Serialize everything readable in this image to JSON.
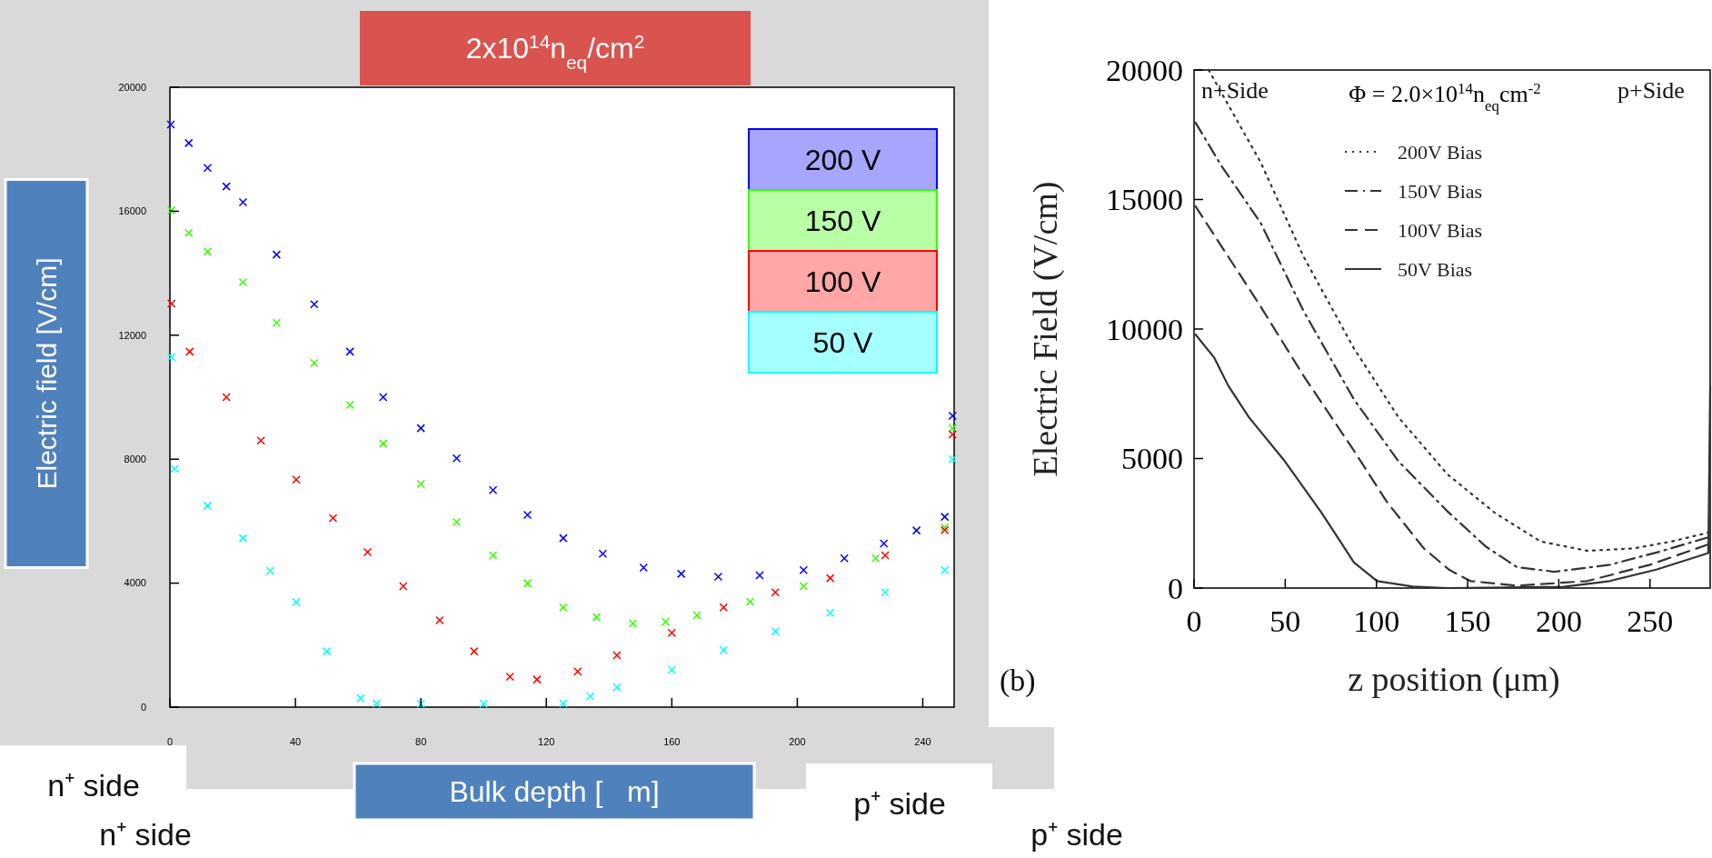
{
  "chart_data": [
    {
      "type": "scatter",
      "title": "2x10$^{14}$n$_{eq}$/cm$^{2}$",
      "xlabel": "Bulk depth [   m]",
      "ylabel": "Electric field [V/cm]",
      "xlim": [
        0,
        250
      ],
      "ylim": [
        0,
        20000
      ],
      "xticks": [
        0,
        40,
        80,
        120,
        160,
        200,
        240
      ],
      "yticks": [
        0,
        4000,
        8000,
        12000,
        16000,
        20000
      ],
      "marker": "cross",
      "legend": "top right",
      "annotations": [
        "n⁺ side",
        "n⁺ side",
        "p⁺ side",
        "p⁺ side"
      ],
      "series": [
        {
          "name": "200 V",
          "color": "#0000ff",
          "x": [
            0.3,
            6,
            12,
            18,
            23.3,
            34,
            46,
            57.4,
            68,
            80,
            91.4,
            103,
            114,
            125.4,
            138,
            151,
            163,
            174.8,
            188,
            202,
            215,
            227.6,
            238,
            247,
            249.5
          ],
          "values": [
            18800,
            18200,
            17400,
            16800,
            16290,
            14600,
            13000,
            11470,
            10000,
            9000,
            8030,
            7000,
            6200,
            5450,
            4950,
            4500,
            4300,
            4210,
            4250,
            4420,
            4800,
            5280,
            5700,
            6140,
            9400
          ]
        },
        {
          "name": "150 V",
          "color": "#33ff00",
          "x": [
            0.5,
            6,
            12,
            23.3,
            34,
            46,
            57.4,
            68,
            80,
            91.4,
            103,
            114,
            125.4,
            136,
            147.6,
            158,
            168,
            185,
            202,
            225,
            247,
            249.5
          ],
          "values": [
            16030,
            15300,
            14700,
            13710,
            12400,
            11100,
            9750,
            8500,
            7200,
            5970,
            4900,
            4000,
            3220,
            2900,
            2700,
            2750,
            2960,
            3400,
            3900,
            4800,
            5800,
            9000
          ]
        },
        {
          "name": "100 V",
          "color": "#ff0000",
          "x": [
            0.5,
            6.3,
            18,
            29,
            40.3,
            52,
            63,
            74.4,
            86,
            97,
            108.4,
            117,
            130,
            142.5,
            160,
            176.5,
            193,
            210.5,
            228,
            247,
            249.5
          ],
          "values": [
            13020,
            11470,
            10000,
            8600,
            7340,
            6100,
            5000,
            3900,
            2800,
            1800,
            980,
            890,
            1150,
            1670,
            2400,
            3220,
            3700,
            4160,
            4900,
            5710,
            8800
          ]
        },
        {
          "name": "50 V",
          "color": "#00ffff",
          "x": [
            0.5,
            1.5,
            12,
            23.3,
            32,
            40.3,
            50,
            60.8,
            65.9,
            80,
            100,
            125.4,
            134,
            142.5,
            160,
            176.5,
            193,
            210.5,
            228,
            247,
            249.5
          ],
          "values": [
            11300,
            7690,
            6500,
            5450,
            4400,
            3390,
            1800,
            290,
            120,
            110,
            110,
            120,
            350,
            640,
            1200,
            1840,
            2450,
            3040,
            3700,
            4420,
            8000
          ]
        }
      ]
    },
    {
      "type": "line",
      "title": "Φ = 2.0×10$^{14}$n$_{eq}$cm$^{-2}$",
      "xlabel": "z position (μm)",
      "ylabel": "Electric Field (V/cm)",
      "xlim": [
        0,
        283
      ],
      "ylim": [
        0,
        20000
      ],
      "xticks": [
        0,
        50,
        100,
        150,
        200,
        250
      ],
      "yticks": [
        0,
        5000,
        10000,
        15000,
        20000
      ],
      "legend": "top",
      "annotations": [
        "n+Side",
        "p+Side",
        "(b)"
      ],
      "series": [
        {
          "name": "200V Bias",
          "color": "#333333",
          "line_style": "dotted",
          "x": [
            8,
            20,
            36.5,
            60,
            87.7,
            112,
            138.8,
            165,
            190,
            215.5,
            241,
            262,
            283
          ],
          "values": [
            20000,
            18500,
            16440,
            12800,
            9250,
            6600,
            4400,
            2900,
            1800,
            1440,
            1530,
            1800,
            2160
          ]
        },
        {
          "name": "150V Bias",
          "color": "#333333",
          "line_style": "dashdot",
          "x": [
            0.8,
            15,
            36.5,
            60,
            87.7,
            112,
            138.8,
            160,
            177,
            197.6,
            228,
            255,
            283
          ],
          "values": [
            17970,
            16300,
            14100,
            10700,
            7280,
            4900,
            2970,
            1600,
            810,
            630,
            900,
            1400,
            1980
          ]
        },
        {
          "name": "100V Bias",
          "color": "#333333",
          "line_style": "dashed",
          "x": [
            0.8,
            15,
            36.5,
            60,
            87.7,
            106,
            126,
            140,
            151.6,
            177,
            215.5,
            250,
            283
          ],
          "values": [
            14740,
            13200,
            10870,
            8200,
            5300,
            3300,
            1530,
            700,
            270,
            90,
            270,
            900,
            1710
          ]
        },
        {
          "name": "50V Bias",
          "color": "#333333",
          "line_style": "solid",
          "x": [
            0.8,
            11,
            18.7,
            30,
            49.3,
            70,
            87.7,
            100.4,
            120,
            138.8,
            202.7,
            228,
            253.8,
            282,
            283
          ],
          "values": [
            9790,
            8900,
            7820,
            6600,
            4940,
            2900,
            990,
            270,
            60,
            0,
            50,
            270,
            720,
            1350,
            7800
          ]
        }
      ]
    }
  ]
}
